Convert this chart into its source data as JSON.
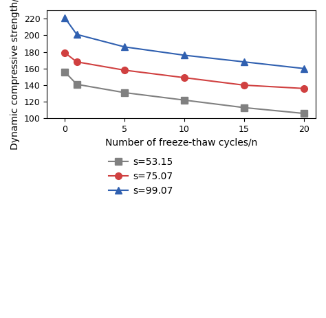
{
  "x": [
    0,
    1,
    5,
    10,
    15,
    20
  ],
  "series": [
    {
      "label": "s=53.15",
      "color": "#808080",
      "marker": "s",
      "values": [
        156,
        141,
        131,
        122,
        113,
        106
      ]
    },
    {
      "label": "s=75.07",
      "color": "#d04040",
      "marker": "o",
      "values": [
        179,
        168,
        158,
        149,
        140,
        136
      ]
    },
    {
      "label": "s=99.07",
      "color": "#3060b0",
      "marker": "^",
      "values": [
        221,
        201,
        186,
        176,
        168,
        160
      ]
    }
  ],
  "xlabel": "Number of freeze-thaw cycles/n",
  "ylabel": "Dynamic compressive strength/MPa",
  "xlim": [
    -1.5,
    21
  ],
  "ylim": [
    100,
    230
  ],
  "xticks": [
    0,
    5,
    10,
    15,
    20
  ],
  "yticks": [
    100,
    120,
    140,
    160,
    180,
    200,
    220
  ],
  "background_color": "#ffffff",
  "linewidth": 1.5,
  "markersize": 7,
  "legend_fontsize": 10,
  "axis_fontsize": 10
}
